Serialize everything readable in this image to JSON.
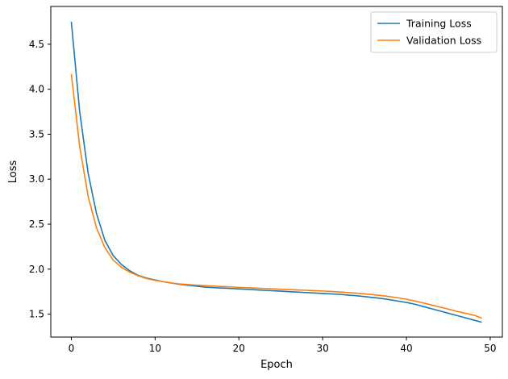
{
  "chart_data": {
    "type": "line",
    "title": "",
    "xlabel": "Epoch",
    "ylabel": "Loss",
    "xlim": [
      -2.45,
      51.45
    ],
    "ylim": [
      1.245,
      4.92
    ],
    "xticks": [
      0,
      10,
      20,
      30,
      40,
      50
    ],
    "yticks": [
      1.5,
      2.0,
      2.5,
      3.0,
      3.5,
      4.0,
      4.5
    ],
    "grid": false,
    "legend_position": "top-right",
    "x": [
      0,
      1,
      2,
      3,
      4,
      5,
      6,
      7,
      8,
      9,
      10,
      11,
      12,
      13,
      14,
      15,
      16,
      17,
      18,
      19,
      20,
      21,
      22,
      23,
      24,
      25,
      26,
      27,
      28,
      29,
      30,
      31,
      32,
      33,
      34,
      35,
      36,
      37,
      38,
      39,
      40,
      41,
      42,
      43,
      44,
      45,
      46,
      47,
      48,
      49
    ],
    "series": [
      {
        "name": "Training Loss",
        "color": "#1f77b4",
        "values": [
          4.75,
          3.75,
          3.07,
          2.62,
          2.32,
          2.15,
          2.05,
          1.98,
          1.93,
          1.9,
          1.88,
          1.86,
          1.845,
          1.83,
          1.82,
          1.81,
          1.8,
          1.795,
          1.79,
          1.785,
          1.78,
          1.775,
          1.77,
          1.765,
          1.76,
          1.755,
          1.75,
          1.745,
          1.74,
          1.735,
          1.73,
          1.725,
          1.72,
          1.712,
          1.705,
          1.695,
          1.685,
          1.675,
          1.66,
          1.645,
          1.63,
          1.61,
          1.585,
          1.56,
          1.535,
          1.51,
          1.485,
          1.46,
          1.435,
          1.41
        ]
      },
      {
        "name": "Validation Loss",
        "color": "#ff7f0e",
        "values": [
          4.17,
          3.36,
          2.81,
          2.46,
          2.24,
          2.1,
          2.02,
          1.965,
          1.925,
          1.895,
          1.875,
          1.86,
          1.845,
          1.835,
          1.828,
          1.822,
          1.817,
          1.812,
          1.807,
          1.802,
          1.797,
          1.793,
          1.789,
          1.785,
          1.781,
          1.777,
          1.773,
          1.769,
          1.765,
          1.761,
          1.757,
          1.752,
          1.746,
          1.74,
          1.733,
          1.725,
          1.716,
          1.706,
          1.695,
          1.681,
          1.665,
          1.646,
          1.625,
          1.602,
          1.579,
          1.555,
          1.532,
          1.51,
          1.49,
          1.455
        ]
      }
    ]
  }
}
